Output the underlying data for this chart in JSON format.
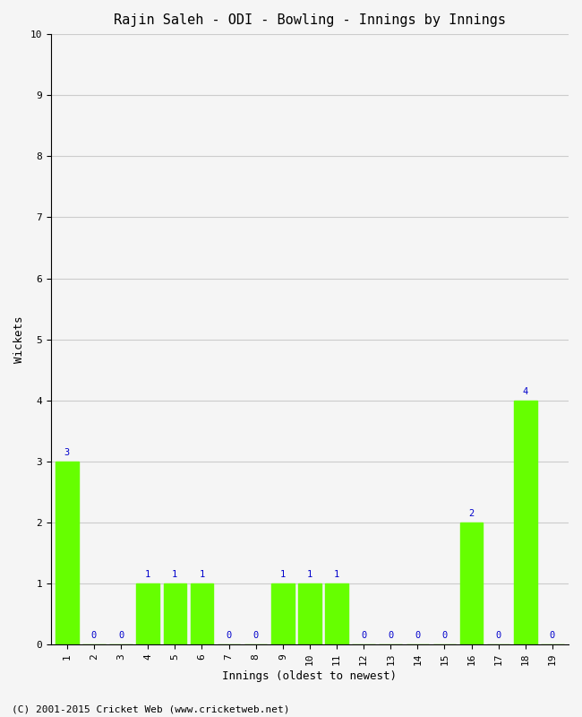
{
  "title": "Rajin Saleh - ODI - Bowling - Innings by Innings",
  "xlabel": "Innings (oldest to newest)",
  "ylabel": "Wickets",
  "innings": [
    1,
    2,
    3,
    4,
    5,
    6,
    7,
    8,
    9,
    10,
    11,
    12,
    13,
    14,
    15,
    16,
    17,
    18,
    19
  ],
  "wickets": [
    3,
    0,
    0,
    1,
    1,
    1,
    0,
    0,
    1,
    1,
    1,
    0,
    0,
    0,
    0,
    2,
    0,
    4,
    0
  ],
  "bar_color": "#66ff00",
  "bar_edge_color": "#66ff00",
  "label_color": "#0000cc",
  "background_color": "#f5f5f5",
  "grid_color": "#cccccc",
  "ylim": [
    0,
    10
  ],
  "yticks": [
    0,
    1,
    2,
    3,
    4,
    5,
    6,
    7,
    8,
    9,
    10
  ],
  "footer_text": "(C) 2001-2015 Cricket Web (www.cricketweb.net)",
  "title_fontsize": 11,
  "axis_label_fontsize": 9,
  "tick_fontsize": 8,
  "bar_label_fontsize": 7.5,
  "footer_fontsize": 8
}
